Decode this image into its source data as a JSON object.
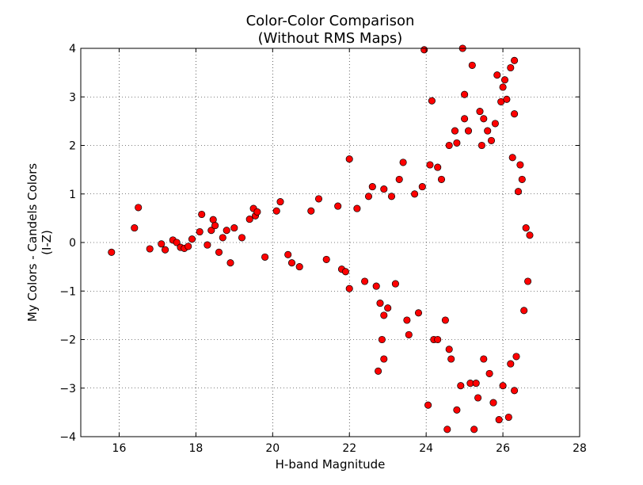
{
  "chart_data": {
    "type": "scatter",
    "title": "Color-Color Comparison",
    "subtitle": "(Without RMS Maps)",
    "xlabel": "H-band Magnitude",
    "ylabel": "My Colors - Candels Colors",
    "ylabel2": "(I-Z)",
    "xlim": [
      15,
      28
    ],
    "ylim": [
      -4,
      4
    ],
    "xticks": [
      16,
      18,
      20,
      22,
      24,
      26,
      28
    ],
    "yticks": [
      -4,
      -3,
      -2,
      -1,
      0,
      1,
      2,
      3,
      4
    ],
    "xtick_labels": [
      "16",
      "18",
      "20",
      "22",
      "24",
      "26",
      "28"
    ],
    "ytick_labels": [
      "−4",
      "−3",
      "−2",
      "−1",
      "0",
      "1",
      "2",
      "3",
      "4"
    ],
    "grid": true,
    "marker_color": "#ff0000",
    "marker_edge": "#000000",
    "points": [
      [
        15.8,
        -0.2
      ],
      [
        16.4,
        0.3
      ],
      [
        16.5,
        0.72
      ],
      [
        16.8,
        -0.13
      ],
      [
        17.1,
        -0.03
      ],
      [
        17.2,
        -0.15
      ],
      [
        17.4,
        0.05
      ],
      [
        17.5,
        0.0
      ],
      [
        17.6,
        -0.1
      ],
      [
        17.7,
        -0.12
      ],
      [
        17.8,
        -0.08
      ],
      [
        17.9,
        0.07
      ],
      [
        18.1,
        0.22
      ],
      [
        18.15,
        0.58
      ],
      [
        18.3,
        -0.05
      ],
      [
        18.4,
        0.25
      ],
      [
        18.45,
        0.47
      ],
      [
        18.5,
        0.35
      ],
      [
        18.6,
        -0.2
      ],
      [
        18.7,
        0.1
      ],
      [
        18.8,
        0.25
      ],
      [
        18.9,
        -0.42
      ],
      [
        19.0,
        0.3
      ],
      [
        19.2,
        0.1
      ],
      [
        19.4,
        0.48
      ],
      [
        19.5,
        0.7
      ],
      [
        19.55,
        0.55
      ],
      [
        19.6,
        0.63
      ],
      [
        19.8,
        -0.3
      ],
      [
        20.1,
        0.65
      ],
      [
        20.2,
        0.84
      ],
      [
        20.4,
        -0.25
      ],
      [
        20.5,
        -0.42
      ],
      [
        20.7,
        -0.5
      ],
      [
        21.0,
        0.65
      ],
      [
        21.2,
        0.9
      ],
      [
        21.4,
        -0.35
      ],
      [
        21.7,
        0.75
      ],
      [
        21.8,
        -0.55
      ],
      [
        21.9,
        -0.6
      ],
      [
        22.0,
        1.72
      ],
      [
        22.0,
        -0.95
      ],
      [
        22.2,
        0.7
      ],
      [
        22.4,
        -0.8
      ],
      [
        22.5,
        0.95
      ],
      [
        22.6,
        1.15
      ],
      [
        22.7,
        -0.9
      ],
      [
        22.75,
        -2.65
      ],
      [
        22.8,
        -1.25
      ],
      [
        22.85,
        -2.0
      ],
      [
        22.9,
        -1.5
      ],
      [
        22.9,
        -2.4
      ],
      [
        22.9,
        1.1
      ],
      [
        23.0,
        -1.35
      ],
      [
        23.1,
        0.95
      ],
      [
        23.2,
        -0.85
      ],
      [
        23.3,
        1.3
      ],
      [
        23.4,
        1.65
      ],
      [
        23.5,
        -1.6
      ],
      [
        23.55,
        -1.9
      ],
      [
        23.7,
        1.0
      ],
      [
        23.8,
        -1.45
      ],
      [
        23.9,
        1.15
      ],
      [
        23.95,
        3.97
      ],
      [
        24.05,
        -3.35
      ],
      [
        24.1,
        1.6
      ],
      [
        24.2,
        -2.0
      ],
      [
        24.15,
        2.92
      ],
      [
        24.3,
        1.55
      ],
      [
        24.4,
        1.3
      ],
      [
        24.5,
        -1.6
      ],
      [
        24.55,
        -3.85
      ],
      [
        24.6,
        2.0
      ],
      [
        24.65,
        -2.4
      ],
      [
        24.75,
        2.3
      ],
      [
        24.8,
        -3.45
      ],
      [
        24.8,
        2.05
      ],
      [
        24.9,
        -2.95
      ],
      [
        24.95,
        4.0
      ],
      [
        25.0,
        3.05
      ],
      [
        25.0,
        2.55
      ],
      [
        25.1,
        2.3
      ],
      [
        25.15,
        -2.9
      ],
      [
        25.2,
        3.65
      ],
      [
        25.25,
        -3.85
      ],
      [
        25.3,
        -2.9
      ],
      [
        25.35,
        -3.2
      ],
      [
        25.4,
        2.7
      ],
      [
        25.45,
        2.0
      ],
      [
        25.5,
        2.55
      ],
      [
        25.6,
        2.3
      ],
      [
        25.65,
        -2.7
      ],
      [
        25.7,
        2.1
      ],
      [
        25.75,
        -3.3
      ],
      [
        25.8,
        2.45
      ],
      [
        25.85,
        3.45
      ],
      [
        25.9,
        -3.65
      ],
      [
        25.95,
        2.9
      ],
      [
        26.0,
        3.2
      ],
      [
        26.0,
        -2.95
      ],
      [
        26.05,
        3.35
      ],
      [
        26.1,
        2.95
      ],
      [
        26.15,
        -3.6
      ],
      [
        26.2,
        3.6
      ],
      [
        26.25,
        1.75
      ],
      [
        26.3,
        3.75
      ],
      [
        26.3,
        2.65
      ],
      [
        26.35,
        -2.35
      ],
      [
        26.4,
        1.05
      ],
      [
        26.45,
        1.6
      ],
      [
        26.5,
        1.3
      ],
      [
        26.55,
        -1.4
      ],
      [
        26.6,
        0.3
      ],
      [
        26.65,
        -0.8
      ],
      [
        26.7,
        0.15
      ],
      [
        26.3,
        -3.05
      ],
      [
        26.2,
        -2.5
      ],
      [
        25.5,
        -2.4
      ],
      [
        24.6,
        -2.2
      ],
      [
        24.3,
        -2.0
      ]
    ]
  }
}
